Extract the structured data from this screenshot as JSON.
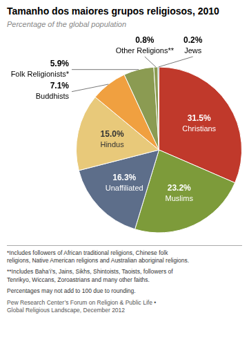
{
  "chart_data": {
    "type": "pie",
    "title": "Tamanho dos maiores grupos religiosos, 2010",
    "subtitle": "Percentage of the global population",
    "categories": [
      "Christians",
      "Muslims",
      "Unaffiliated",
      "Hindus",
      "Buddhists",
      "Folk Religionists*",
      "Other Religions**",
      "Jews"
    ],
    "values": [
      31.5,
      23.2,
      16.3,
      15.0,
      7.1,
      5.9,
      0.8,
      0.2
    ],
    "value_labels": [
      "31.5%",
      "23.2%",
      "16.3%",
      "15.0%",
      "7.1%",
      "5.9%",
      "0.8%",
      "0.2%"
    ],
    "colors": [
      "#C0392B",
      "#7D9B3A",
      "#5D6E8A",
      "#E8C97A",
      "#F0A040",
      "#8B9B52",
      "#8B9B52",
      "#4A7A8A"
    ],
    "data_labels": true,
    "footnotes": [
      "*Includes followers of African traditional religions, Chinese folk\nreligions, Native American religions and Australian aboriginal religions.",
      "**Includes Baha’i’s, Jains, Sikhs, Shintoists, Taoists, followers of\nTenrikyo, Wiccans, Zoroastrians and many other faiths.",
      "Percentages may not add to 100 due to rounding."
    ],
    "source": "Pew Research Center’s Forum on Religion & Public Life •\nGlobal Religious Landscape, December 2012"
  }
}
